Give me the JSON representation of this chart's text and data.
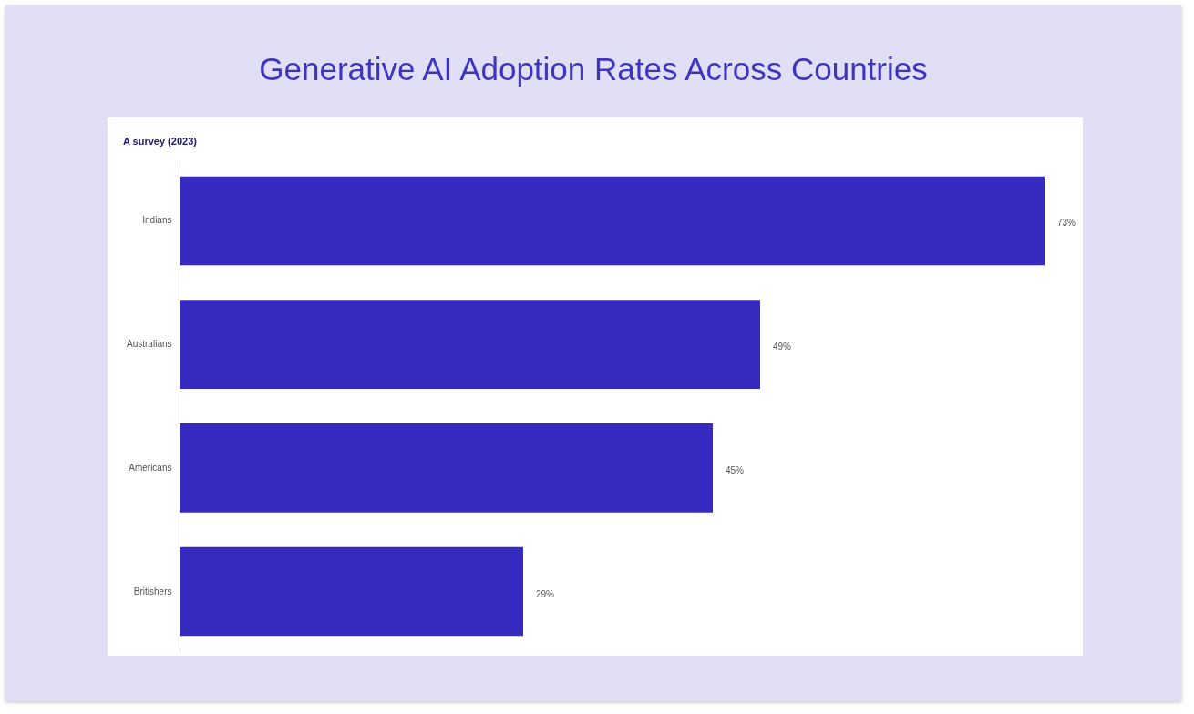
{
  "chart_data": {
    "type": "bar",
    "title": "Generative AI Adoption Rates Across Countries",
    "subtitle": "A survey (2023)",
    "orientation": "horizontal",
    "tick_labels": "y",
    "categories": [
      "Indians",
      "Australians",
      "Americans",
      "Britishers"
    ],
    "values": [
      73,
      49,
      45,
      29
    ],
    "value_labels": [
      "73%",
      "49%",
      "45%",
      "29%"
    ],
    "color": "#352bc1"
  }
}
